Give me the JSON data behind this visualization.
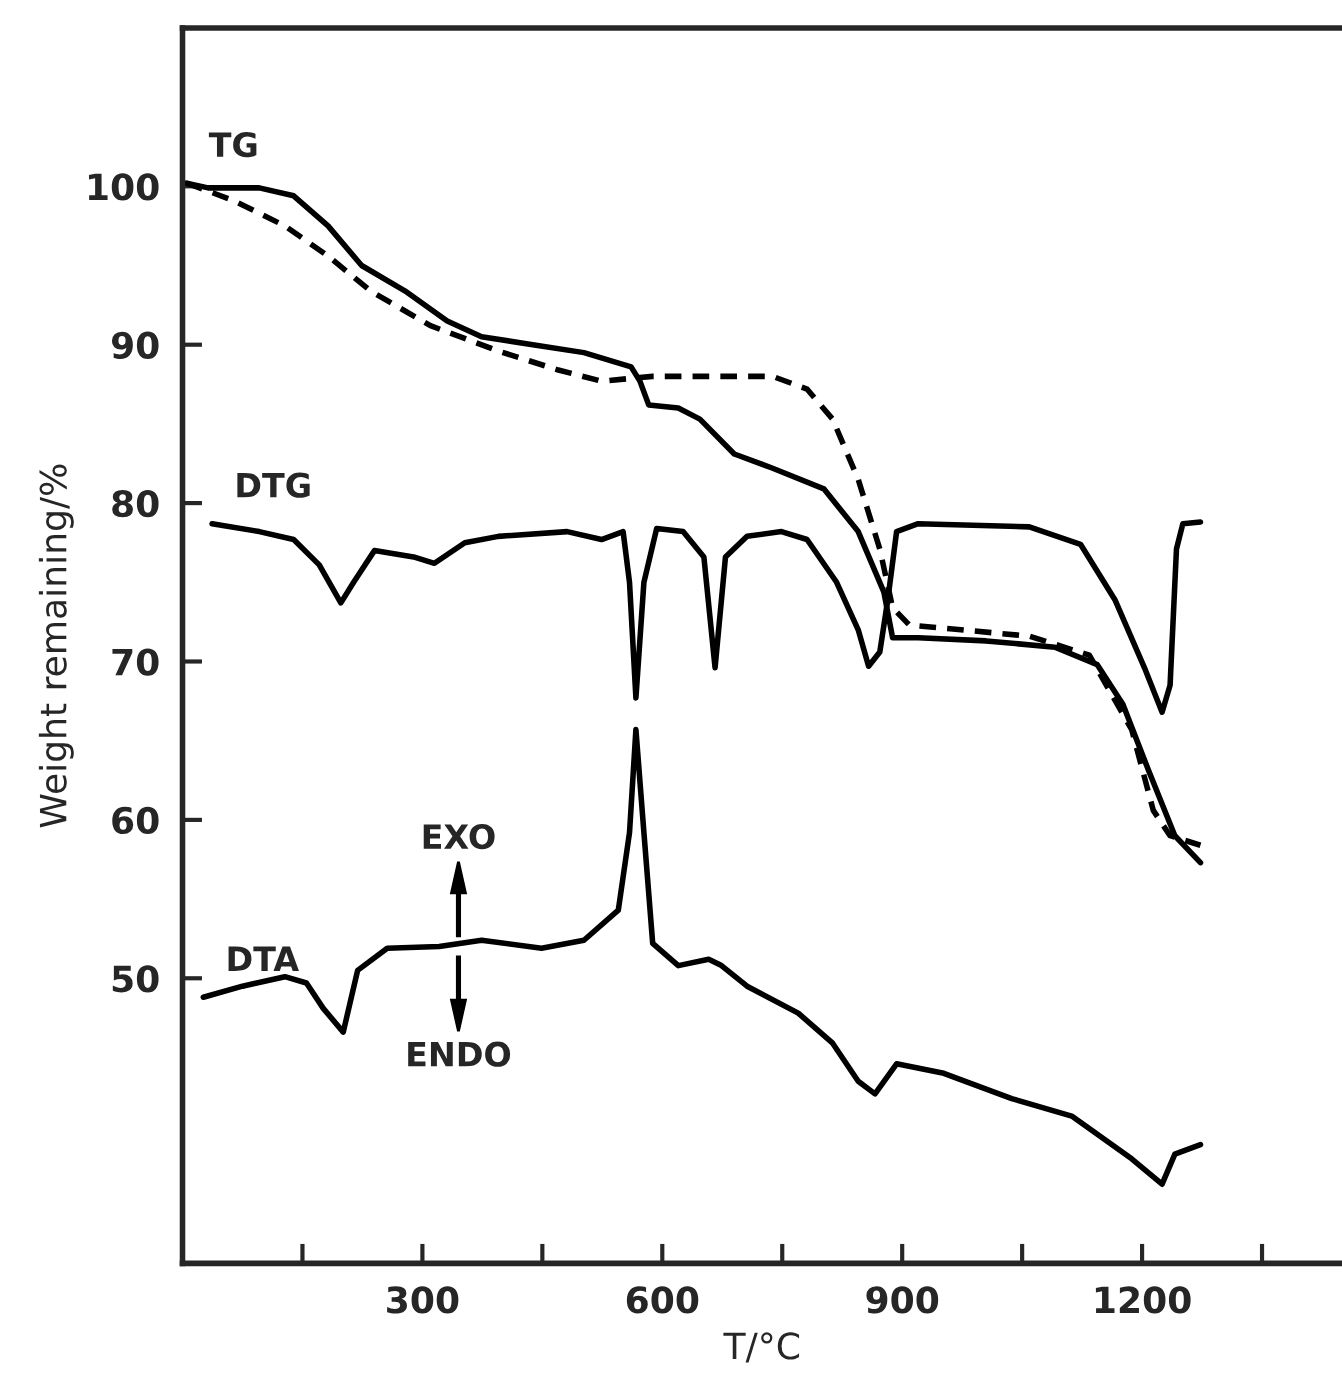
{
  "chart_data": {
    "type": "line",
    "xlabel": "T/°C",
    "ylabel": "Weight remaining/%",
    "xlim": [
      0,
      1450
    ],
    "ylim": [
      32,
      110
    ],
    "xticks": [
      {
        "value": 150,
        "label": null
      },
      300,
      {
        "value": 450,
        "label": null
      },
      600,
      {
        "value": 750,
        "label": null
      },
      900,
      {
        "value": 1050,
        "label": null
      },
      1200,
      {
        "value": 1350,
        "label": null
      }
    ],
    "yticks": [
      50,
      60,
      70,
      80,
      90,
      100
    ],
    "grid": false,
    "legend": false,
    "annotations": [
      "EXO",
      "ENDO"
    ],
    "series": [
      {
        "name": "TG",
        "color": "#000000",
        "line_style": "solid",
        "x": [
          5,
          32,
          96,
          139,
          182,
          224,
          278,
          331,
          374,
          438,
          502,
          561,
          572,
          583,
          620,
          647,
          690,
          738,
          802,
          845,
          877,
          888,
          920,
          1005,
          1091,
          1144,
          1176,
          1209,
          1241,
          1273
        ],
        "values": [
          100.2,
          99.9,
          99.9,
          99.4,
          97.5,
          95.0,
          93.4,
          91.5,
          90.5,
          90.0,
          89.5,
          88.6,
          87.7,
          86.2,
          86.0,
          85.3,
          83.1,
          82.2,
          80.9,
          78.2,
          74.4,
          71.5,
          71.5,
          71.3,
          70.9,
          69.8,
          67.3,
          63.0,
          59.0,
          57.3
        ]
      },
      {
        "color": "#000000",
        "line_style": "dashed",
        "x": [
          5,
          64,
          128,
          182,
          235,
          310,
          395,
          470,
          524,
          588,
          738,
          781,
          813,
          845,
          872,
          888,
          909,
          952,
          1059,
          1134,
          1187,
          1214,
          1235,
          1273
        ],
        "values": [
          100.2,
          99.1,
          97.5,
          95.6,
          93.4,
          91.2,
          89.6,
          88.4,
          87.7,
          88.0,
          88.0,
          87.2,
          85.3,
          81.5,
          77.1,
          73.4,
          72.3,
          72.1,
          71.6,
          70.4,
          65.7,
          60.6,
          59.0,
          58.4
        ]
      },
      {
        "name": "DTG",
        "color": "#000000",
        "line_style": "solid",
        "x": [
          37,
          96,
          139,
          171,
          198,
          214,
          240,
          289,
          315,
          353,
          395,
          481,
          524,
          551,
          559,
          567,
          577,
          593,
          626,
          652,
          666,
          679,
          706,
          749,
          781,
          818,
          845,
          858,
          872,
          882,
          893,
          920,
          1059,
          1123,
          1166,
          1203,
          1225,
          1235,
          1243,
          1251,
          1273
        ],
        "values": [
          78.7,
          78.2,
          77.7,
          76.1,
          73.7,
          75.0,
          77.0,
          76.6,
          76.2,
          77.5,
          77.9,
          78.2,
          77.7,
          78.2,
          75.0,
          67.7,
          75.0,
          78.4,
          78.2,
          76.6,
          69.6,
          76.6,
          77.9,
          78.2,
          77.7,
          75.0,
          72.0,
          69.7,
          70.6,
          73.9,
          78.2,
          78.7,
          78.5,
          77.4,
          73.9,
          69.6,
          66.8,
          68.5,
          77.1,
          78.7,
          78.8
        ]
      },
      {
        "name": "DTA",
        "color": "#000000",
        "line_style": "solid",
        "x": [
          26,
          75,
          128,
          155,
          176,
          201,
          219,
          256,
          321,
          374,
          449,
          502,
          545,
          559,
          567,
          577,
          588,
          620,
          658,
          674,
          706,
          770,
          813,
          845,
          866,
          893,
          952,
          1037,
          1112,
          1187,
          1225,
          1241,
          1273
        ],
        "values": [
          48.8,
          49.5,
          50.1,
          49.7,
          48.1,
          46.6,
          50.5,
          51.9,
          52.0,
          52.4,
          51.9,
          52.4,
          54.3,
          59.2,
          65.7,
          59.2,
          52.2,
          50.8,
          51.2,
          50.8,
          49.5,
          47.8,
          45.9,
          43.5,
          42.7,
          44.6,
          44.0,
          42.4,
          41.3,
          38.6,
          37.0,
          38.9,
          39.5
        ]
      }
    ]
  }
}
